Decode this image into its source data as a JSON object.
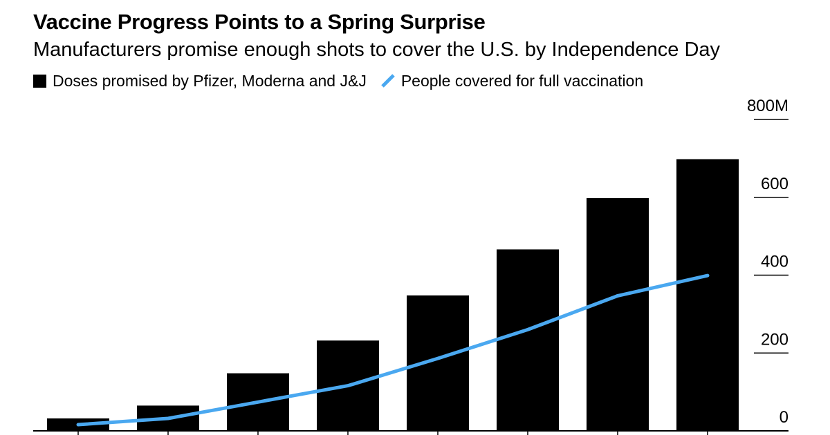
{
  "title": "Vaccine Progress Points to a Spring Surprise",
  "subtitle": "Manufacturers promise enough shots to cover the U.S. by Independence Day",
  "colors": {
    "bars": "#000000",
    "line": "#4aa8f0"
  },
  "chart_data": {
    "type": "bar",
    "categories": [
      "",
      "",
      "",
      "",
      "",
      "",
      "",
      ""
    ],
    "series": [
      {
        "name": "Doses promised by Pfizer, Moderna and J&J",
        "type": "bar",
        "values": [
          32,
          65,
          148,
          232,
          348,
          466,
          598,
          698
        ]
      },
      {
        "name": "People covered for full vaccination",
        "type": "line",
        "values": [
          16,
          32,
          74,
          116,
          186,
          260,
          347,
          399
        ]
      }
    ],
    "yticks": [
      {
        "value": 0,
        "label": "0"
      },
      {
        "value": 200,
        "label": "200"
      },
      {
        "value": 400,
        "label": "400"
      },
      {
        "value": 600,
        "label": "600"
      },
      {
        "value": 800,
        "label": "800M"
      }
    ],
    "ylim": [
      0,
      800
    ],
    "xlabel": "",
    "ylabel": "",
    "legend_position": "top-left",
    "y_axis_side": "right",
    "grid": false
  }
}
